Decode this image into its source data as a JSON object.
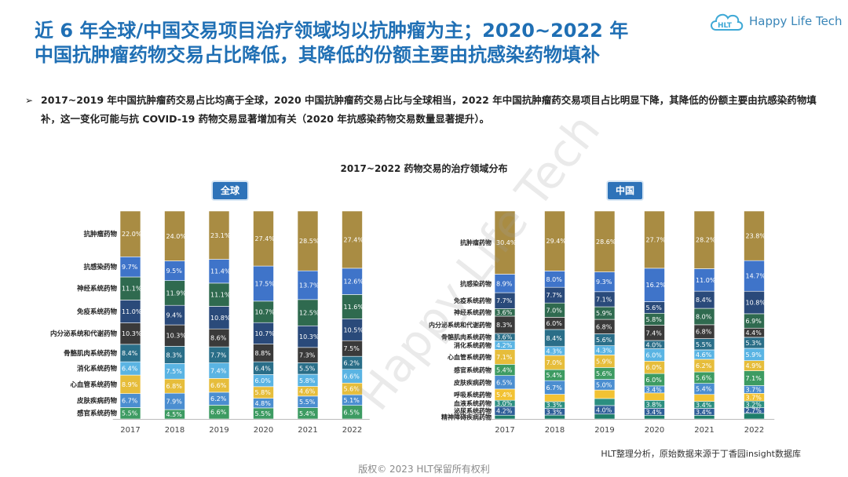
{
  "title": {
    "line1": "近 6 年全球/中国交易项目治疗领域均以抗肿瘤为主；2020~2022 年",
    "line2": "中国抗肿瘤药物交易占比降低，其降低的份额主要由抗感染药物填补"
  },
  "brand": {
    "name": "Happy Life Tech"
  },
  "bullet": {
    "mark": "➢",
    "text": "2017~2019 年中国抗肿瘤药交易占比均高于全球，2020 中国抗肿瘤药交易占比与全球相当，2022 年中国抗肿瘤药交易项目占比明显下降，其降低的份额主要由抗感染药物填补，这一变化可能与抗 COVID-19 药物交易显著增加有关（2020 年抗感染药物交易数量显著提升）。"
  },
  "chart_title": "2017~2022 药物交易的治疗领域分布",
  "watermark": "Happy Life Tech",
  "footer": {
    "source": "HLT整理分析，原始数据来源于丁香园insight数据库",
    "copyright": "版权© 2023 HLT保留所有权利"
  },
  "colors": {
    "抗肿瘤药物": "#a98c43",
    "抗感染药物": "#3f74c9",
    "神经系统药物": "#2f6a4f",
    "免疫系统药物": "#2a4a7a",
    "内分泌系统和代谢药物": "#3a3a3a",
    "骨骼肌肉系统药物": "#2a6e88",
    "消化系统药物": "#5ab4e3",
    "心血管系统药物": "#e6bd3b",
    "皮肤疾病药物": "#4b8ed0",
    "感官系统药物": "#3d9b62",
    "呼吸系统药物": "#f2c233",
    "血液系统药物": "#2c8f80",
    "泌尿系统药物": "#2f5f98",
    "精神障碍疾病药物": "#1e7e6a",
    "其他": "#44b98d"
  },
  "chart_data": [
    {
      "type": "bar",
      "stacked": true,
      "percent": true,
      "region": "全球",
      "categories": [
        "2017",
        "2018",
        "2019",
        "2020",
        "2021",
        "2022"
      ],
      "series": [
        {
          "name": "感官系统药物",
          "values": [
            5.5,
            4.5,
            6.6,
            5.5,
            5.4,
            6.5
          ]
        },
        {
          "name": "皮肤疾病药物",
          "values": [
            6.7,
            7.9,
            6.2,
            4.8,
            5.5,
            5.1
          ]
        },
        {
          "name": "心血管系统药物",
          "values": [
            8.9,
            6.8,
            6.6,
            5.8,
            4.6,
            5.6
          ]
        },
        {
          "name": "消化系统药物",
          "values": [
            6.4,
            7.5,
            7.4,
            6.0,
            5.8,
            6.6
          ]
        },
        {
          "name": "骨骼肌肉系统药物",
          "values": [
            8.4,
            8.3,
            7.7,
            6.4,
            5.5,
            6.2
          ]
        },
        {
          "name": "内分泌系统和代谢药物",
          "values": [
            10.3,
            10.3,
            8.6,
            8.8,
            7.3,
            7.5
          ]
        },
        {
          "name": "免疫系统药物",
          "values": [
            11.0,
            9.4,
            10.8,
            10.7,
            10.3,
            10.5
          ]
        },
        {
          "name": "神经系统药物",
          "values": [
            11.1,
            11.9,
            11.1,
            10.7,
            12.5,
            11.6
          ]
        },
        {
          "name": "抗感染药物",
          "values": [
            9.7,
            9.5,
            11.4,
            17.5,
            13.7,
            12.6
          ]
        },
        {
          "name": "抗肿瘤药物",
          "values": [
            22.0,
            24.0,
            23.1,
            27.4,
            28.5,
            27.4
          ]
        }
      ],
      "value_labels": {
        "感官系统药物": [
          "5.5%",
          "4.5%",
          "6.6%",
          "5.5%",
          "5.4%",
          "6.5%"
        ],
        "皮肤疾病药物": [
          "6.7%",
          "7.9%",
          "6.2%",
          "4.8%",
          "5.5%",
          "5.1%"
        ],
        "心血管系统药物": [
          "8.9%",
          "6.8%",
          "6.6%",
          "5.8%",
          "4.6%",
          "5.6%"
        ],
        "消化系统药物": [
          "6.4%",
          "7.5%",
          "7.4%",
          "6.0%",
          "5.8%",
          "6.6%"
        ],
        "骨骼肌肉系统药物": [
          "8.4%",
          "8.3%",
          "7.7%",
          "6.4%",
          "5.5%",
          "6.2%"
        ],
        "内分泌系统和代谢药物": [
          "10.3%",
          "10.3%",
          "8.6%",
          "8.8%",
          "7.3%",
          "7.5%"
        ],
        "免疫系统药物": [
          "11.0%",
          "9.4%",
          "10.8%",
          "10.7%",
          "10.3%",
          "10.5%"
        ],
        "神经系统药物": [
          "11.1%",
          "11.9%",
          "11.1%",
          "10.7%",
          "12.5%",
          "11.6%"
        ],
        "抗感染药物": [
          "9.7%",
          "9.5%",
          "11.4%",
          "17.5%",
          "13.7%",
          "12.6%"
        ],
        "抗肿瘤药物": [
          "22.0%",
          "24.0%",
          "23.1%",
          "27.4%",
          "28.5%",
          "27.4%"
        ]
      }
    },
    {
      "type": "bar",
      "stacked": true,
      "percent": true,
      "region": "中国",
      "categories": [
        "2017",
        "2018",
        "2019",
        "2020",
        "2021",
        "2022"
      ],
      "series": [
        {
          "name": "精神障碍疾病药物",
          "values": [
            1.8,
            1.9,
            2.3,
            1.8,
            1.8,
            2.7
          ]
        },
        {
          "name": "泌尿系统药物",
          "values": [
            4.2,
            3.3,
            4.0,
            3.4,
            3.4,
            2.7
          ]
        },
        {
          "name": "血液系统药物",
          "values": [
            3.0,
            3.3,
            3.3,
            3.8,
            3.4,
            3.2
          ]
        },
        {
          "name": "呼吸系统药物",
          "values": [
            5.4,
            3.6,
            4.0,
            3.6,
            3.4,
            3.7
          ]
        },
        {
          "name": "皮肤疾病药物",
          "values": [
            6.5,
            6.7,
            5.0,
            3.4,
            5.4,
            3.7
          ]
        },
        {
          "name": "感官系统药物",
          "values": [
            5.4,
            5.4,
            5.6,
            6.0,
            5.6,
            7.1
          ]
        },
        {
          "name": "心血管系统药物",
          "values": [
            7.1,
            7.0,
            5.9,
            6.0,
            6.2,
            4.9
          ]
        },
        {
          "name": "消化系统药物",
          "values": [
            4.2,
            4.3,
            4.3,
            6.0,
            4.6,
            5.9
          ]
        },
        {
          "name": "骨骼肌肉系统药物",
          "values": [
            3.6,
            8.4,
            5.6,
            4.0,
            5.5,
            5.3
          ]
        },
        {
          "name": "内分泌系统和代谢药物",
          "values": [
            8.3,
            6.0,
            6.8,
            7.4,
            6.8,
            4.4
          ]
        },
        {
          "name": "神经系统药物",
          "values": [
            3.6,
            7.0,
            5.9,
            5.8,
            8.0,
            6.9
          ]
        },
        {
          "name": "免疫系统药物",
          "values": [
            7.7,
            7.7,
            7.1,
            5.6,
            8.4,
            10.8
          ]
        },
        {
          "name": "抗感染药物",
          "values": [
            8.9,
            8.0,
            9.3,
            16.2,
            11.0,
            14.7
          ]
        },
        {
          "name": "抗肿瘤药物",
          "values": [
            30.4,
            29.4,
            28.6,
            27.7,
            28.2,
            23.8
          ]
        }
      ],
      "value_labels": {
        "精神障碍疾病药物": [
          "",
          "",
          "",
          "",
          "",
          ""
        ],
        "泌尿系统药物": [
          "4.2%",
          "3.3%",
          "4.0%",
          "3.4%",
          "3.4%",
          "2.7%"
        ],
        "血液系统药物": [
          "3.0%",
          "3.3%",
          "",
          "3.8%",
          "3.4%",
          "3.2%"
        ],
        "呼吸系统药物": [
          "5.4%",
          "",
          "",
          "",
          "",
          "3.7%"
        ],
        "皮肤疾病药物": [
          "6.5%",
          "6.7%",
          "5.0%",
          "3.4%",
          "5.4%",
          "3.7%"
        ],
        "感官系统药物": [
          "5.4%",
          "5.4%",
          "5.6%",
          "6.0%",
          "5.6%",
          "7.1%"
        ],
        "心血管系统药物": [
          "7.1%",
          "7.0%",
          "5.9%",
          "6.0%",
          "6.2%",
          "4.9%"
        ],
        "消化系统药物": [
          "4.2%",
          "4.3%",
          "4.3%",
          "6.0%",
          "4.6%",
          "5.9%"
        ],
        "骨骼肌肉系统药物": [
          "3.6%",
          "8.4%",
          "5.6%",
          "4.0%",
          "5.5%",
          "5.3%"
        ],
        "内分泌系统和代谢药物": [
          "8.3%",
          "6.0%",
          "6.8%",
          "7.4%",
          "6.8%",
          "4.4%"
        ],
        "神经系统药物": [
          "3.6%",
          "7.0%",
          "5.9%",
          "5.8%",
          "8.0%",
          "6.9%"
        ],
        "免疫系统药物": [
          "7.7%",
          "7.7%",
          "7.1%",
          "5.6%",
          "8.4%",
          "10.8%"
        ],
        "抗感染药物": [
          "8.9%",
          "8.0%",
          "9.3%",
          "16.2%",
          "11.0%",
          "14.7%"
        ],
        "抗肿瘤药物": [
          "30.4%",
          "29.4%",
          "28.6%",
          "27.7%",
          "28.2%",
          "23.8%"
        ]
      }
    }
  ]
}
